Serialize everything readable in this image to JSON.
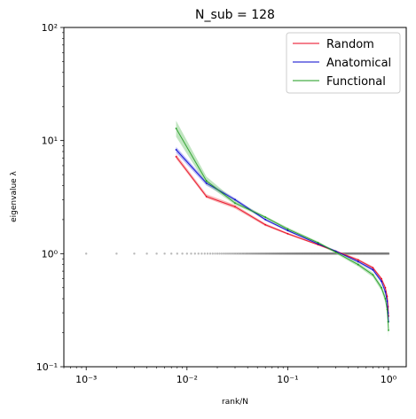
{
  "chart_data": {
    "type": "line",
    "title": "N_sub = 128",
    "xlabel": "rank/N",
    "ylabel": "eigenvalue λ",
    "xscale": "log",
    "yscale": "log",
    "xlim": [
      0.0006,
      1.5
    ],
    "ylim": [
      0.1,
      100
    ],
    "x_ticks": [
      {
        "value": 0.001,
        "label": "10⁻³"
      },
      {
        "value": 0.01,
        "label": "10⁻²"
      },
      {
        "value": 0.1,
        "label": "10⁻¹"
      },
      {
        "value": 1,
        "label": "10⁰"
      }
    ],
    "y_ticks": [
      {
        "value": 0.1,
        "label": "10⁻¹"
      },
      {
        "value": 1,
        "label": "10⁰"
      },
      {
        "value": 10,
        "label": "10¹"
      },
      {
        "value": 100,
        "label": "10²"
      }
    ],
    "legend_position": "top-right",
    "grid": false,
    "series": [
      {
        "name": "Random",
        "color": "#e8001b",
        "fill": "#f28080",
        "x": [
          0.0078,
          0.0156,
          0.03,
          0.06,
          0.1,
          0.2,
          0.3,
          0.5,
          0.7,
          0.85,
          0.93,
          0.97,
          0.99,
          1.0
        ],
        "y": [
          7.2,
          3.2,
          2.6,
          1.8,
          1.5,
          1.2,
          1.05,
          0.88,
          0.75,
          0.6,
          0.5,
          0.42,
          0.34,
          0.28
        ],
        "lower": [
          6.9,
          3.1,
          2.5,
          1.75,
          1.47,
          1.18,
          1.03,
          0.86,
          0.73,
          0.58,
          0.48,
          0.4,
          0.32,
          0.26
        ],
        "upper": [
          7.6,
          3.35,
          2.7,
          1.85,
          1.53,
          1.22,
          1.07,
          0.9,
          0.77,
          0.62,
          0.52,
          0.44,
          0.36,
          0.3
        ]
      },
      {
        "name": "Anatomical",
        "color": "#0000cc",
        "fill": "#8080ee",
        "x": [
          0.0078,
          0.0156,
          0.03,
          0.06,
          0.1,
          0.2,
          0.3,
          0.5,
          0.7,
          0.85,
          0.93,
          0.97,
          0.99,
          1.0
        ],
        "y": [
          8.3,
          4.2,
          3.0,
          2.0,
          1.6,
          1.22,
          1.05,
          0.85,
          0.72,
          0.57,
          0.46,
          0.38,
          0.3,
          0.25
        ],
        "lower": [
          7.8,
          4.0,
          2.9,
          1.95,
          1.57,
          1.2,
          1.03,
          0.83,
          0.7,
          0.55,
          0.44,
          0.36,
          0.28,
          0.23
        ],
        "upper": [
          8.8,
          4.4,
          3.1,
          2.05,
          1.63,
          1.24,
          1.07,
          0.87,
          0.74,
          0.59,
          0.48,
          0.4,
          0.32,
          0.27
        ]
      },
      {
        "name": "Functional",
        "color": "#1a9a1a",
        "fill": "#8cd08c",
        "x": [
          0.0078,
          0.0156,
          0.03,
          0.06,
          0.1,
          0.2,
          0.3,
          0.5,
          0.7,
          0.85,
          0.93,
          0.97,
          0.99,
          1.0
        ],
        "y": [
          12.8,
          4.4,
          2.8,
          2.1,
          1.65,
          1.25,
          1.03,
          0.8,
          0.65,
          0.5,
          0.4,
          0.32,
          0.25,
          0.21
        ],
        "lower": [
          10.8,
          4.1,
          2.7,
          2.05,
          1.6,
          1.22,
          1.0,
          0.77,
          0.62,
          0.47,
          0.37,
          0.3,
          0.22,
          0.18
        ],
        "upper": [
          15.0,
          4.8,
          2.95,
          2.15,
          1.7,
          1.28,
          1.06,
          0.83,
          0.68,
          0.53,
          0.43,
          0.34,
          0.28,
          0.24
        ]
      }
    ],
    "reference_points": {
      "color": "#808080",
      "y": 1,
      "n": 1000
    }
  }
}
